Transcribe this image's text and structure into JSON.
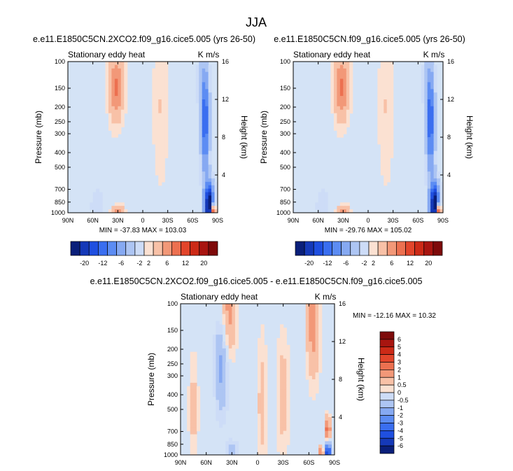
{
  "figure": {
    "title": "JJA"
  },
  "colors": {
    "frame": "#000000",
    "blue_scale": [
      "#0a1f7a",
      "#1539b8",
      "#1f4fe0",
      "#3a6ef0",
      "#5c8cf3",
      "#86a9f2",
      "#adc5f3",
      "#cddcf7"
    ],
    "red_scale": [
      "#fbe1d2",
      "#f8c1a7",
      "#f29878",
      "#ec7050",
      "#e2452b",
      "#cc2a17",
      "#a81510",
      "#7e0a0a"
    ],
    "background_blue": "#d4e3f6"
  },
  "chart_data": [
    {
      "type": "heatmap",
      "id": "panel1",
      "title": "e.e11.E1850C5CN.2XCO2.f09_g16.cice5.005 (yrs 26-50)",
      "subtitle_left": "Stationary eddy heat",
      "subtitle_right": "K m/s",
      "ylabel": "Pressure (mb)",
      "y2label": "Height (km)",
      "x_ticks": [
        "90N",
        "60N",
        "30N",
        "0",
        "30S",
        "60S",
        "90S"
      ],
      "x_range": [
        90,
        -90
      ],
      "y_ticks": [
        100,
        150,
        200,
        250,
        300,
        400,
        500,
        700,
        850,
        1000
      ],
      "y2_ticks": [
        16,
        12,
        8,
        4
      ],
      "y_scale": "log",
      "y_range": [
        100,
        1000
      ],
      "min_label": "MIN = -37.83",
      "max_label": "MAX = 103.03",
      "features": [
        {
          "lat": 32,
          "p": 150,
          "value": 6,
          "rlat": 8,
          "rp": 0.2
        },
        {
          "lat": 32,
          "p": 130,
          "value": 2,
          "rlat": 14,
          "rp": 0.4
        },
        {
          "lat": 55,
          "p": 900,
          "value": -2,
          "rlat": 10,
          "rp": 0.15
        },
        {
          "lat": 30,
          "p": 990,
          "value": 6,
          "rlat": 8,
          "rp": 0.05
        },
        {
          "lat": -75,
          "p": 250,
          "value": -12,
          "rlat": 5,
          "rp": 0.35
        },
        {
          "lat": -80,
          "p": 900,
          "value": -20,
          "rlat": 6,
          "rp": 0.15
        },
        {
          "lat": -85,
          "p": 970,
          "value": 20,
          "rlat": 3,
          "rp": 0.05
        },
        {
          "lat": -20,
          "p": 200,
          "value": 2,
          "rlat": 10,
          "rp": 0.5
        },
        {
          "lat": -70,
          "p": 130,
          "value": -2,
          "rlat": 6,
          "rp": 0.3
        }
      ]
    },
    {
      "type": "heatmap",
      "id": "panel2",
      "title": "e.e11.E1850C5CN.f09_g16.cice5.005 (yrs 26-50)",
      "subtitle_left": "Stationary eddy heat",
      "subtitle_right": "K m/s",
      "ylabel": "Pressure (mb)",
      "y2label": "Height (km)",
      "x_ticks": [
        "90N",
        "60N",
        "30N",
        "0",
        "30S",
        "60S",
        "90S"
      ],
      "x_range": [
        90,
        -90
      ],
      "y_ticks": [
        100,
        150,
        200,
        250,
        300,
        400,
        500,
        700,
        850,
        1000
      ],
      "y2_ticks": [
        16,
        12,
        8,
        4
      ],
      "y_scale": "log",
      "y_range": [
        100,
        1000
      ],
      "min_label": "MIN = -29.76",
      "max_label": "MAX = 105.02",
      "features": [
        {
          "lat": 32,
          "p": 150,
          "value": 6,
          "rlat": 8,
          "rp": 0.2
        },
        {
          "lat": 32,
          "p": 130,
          "value": 2,
          "rlat": 14,
          "rp": 0.4
        },
        {
          "lat": 55,
          "p": 900,
          "value": -2,
          "rlat": 10,
          "rp": 0.15
        },
        {
          "lat": 30,
          "p": 990,
          "value": 6,
          "rlat": 8,
          "rp": 0.05
        },
        {
          "lat": -75,
          "p": 250,
          "value": -12,
          "rlat": 5,
          "rp": 0.35
        },
        {
          "lat": -80,
          "p": 900,
          "value": -20,
          "rlat": 6,
          "rp": 0.15
        },
        {
          "lat": -85,
          "p": 970,
          "value": 20,
          "rlat": 3,
          "rp": 0.05
        },
        {
          "lat": -20,
          "p": 200,
          "value": 2,
          "rlat": 10,
          "rp": 0.5
        },
        {
          "lat": -70,
          "p": 130,
          "value": -2,
          "rlat": 6,
          "rp": 0.3
        }
      ]
    },
    {
      "type": "heatmap",
      "id": "panel3",
      "title": "e.e11.E1850C5CN.2XCO2.f09_g16.cice5.005 - e.e11.E1850C5CN.f09_g16.cice5.005",
      "subtitle_left": "Stationary eddy heat",
      "subtitle_right": "K m/s",
      "ylabel": "Pressure (mb)",
      "y2label": "Height (km)",
      "x_ticks": [
        "90N",
        "60N",
        "30N",
        "0",
        "30S",
        "60S",
        "90S"
      ],
      "x_range": [
        90,
        -90
      ],
      "y_ticks": [
        100,
        150,
        200,
        250,
        300,
        400,
        500,
        700,
        850,
        1000
      ],
      "y2_ticks": [
        16,
        12,
        8,
        4
      ],
      "y_scale": "log",
      "y_range": [
        100,
        1000
      ],
      "min_label": "MIN = -12.16",
      "max_label": "MAX =  10.32",
      "features": [
        {
          "lat": 35,
          "p": 120,
          "value": 2,
          "rlat": 10,
          "rp": 0.3
        },
        {
          "lat": -65,
          "p": 130,
          "value": 2,
          "rlat": 8,
          "rp": 0.4
        },
        {
          "lat": 42,
          "p": 230,
          "value": -2,
          "rlat": 8,
          "rp": 0.35
        },
        {
          "lat": 75,
          "p": 500,
          "value": 1,
          "rlat": 6,
          "rp": 0.4
        },
        {
          "lat": -5,
          "p": 450,
          "value": 1,
          "rlat": 6,
          "rp": 0.5
        },
        {
          "lat": -82,
          "p": 700,
          "value": 3,
          "rlat": 3,
          "rp": 0.1
        },
        {
          "lat": -82,
          "p": 950,
          "value": -5,
          "rlat": 4,
          "rp": 0.07
        },
        {
          "lat": -75,
          "p": 980,
          "value": 3,
          "rlat": 3,
          "rp": 0.05
        },
        {
          "lat": 30,
          "p": 950,
          "value": -1,
          "rlat": 8,
          "rp": 0.08
        },
        {
          "lat": -30,
          "p": 400,
          "value": 1,
          "rlat": 8,
          "rp": 0.4
        }
      ]
    }
  ],
  "colorbars": {
    "top": {
      "labels": [
        "-20",
        "-12",
        "-6",
        "-2",
        "2",
        "6",
        "12",
        "20"
      ],
      "levels": [
        -20,
        -16,
        -12,
        -8,
        -6,
        -4,
        -2,
        -1,
        1,
        2,
        4,
        6,
        8,
        12,
        16,
        20
      ]
    },
    "bottom": {
      "labels": [
        "6",
        "5",
        "4",
        "3",
        "2",
        "1",
        "0.5",
        "0",
        "-0.5",
        "-1",
        "-2",
        "-3",
        "-4",
        "-5",
        "-6"
      ],
      "levels": [
        6,
        5,
        4,
        3,
        2,
        1,
        0.5,
        0,
        -0.5,
        -1,
        -2,
        -3,
        -4,
        -5,
        -6
      ]
    }
  }
}
